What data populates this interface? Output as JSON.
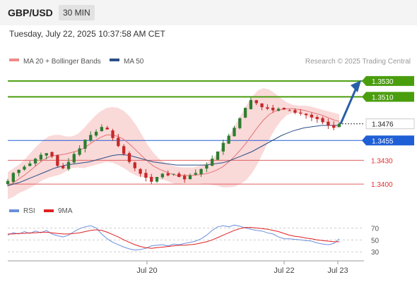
{
  "header": {
    "pair": "GBP/USD",
    "timeframe": "30 MIN"
  },
  "datetime": "Tuesday, July 22, 2025 10:37:58 AM CET",
  "legend": {
    "ma20": "MA 20 + Bollinger Bands",
    "ma50": "MA 50",
    "rsi": "RSI",
    "ma9": "9MA"
  },
  "credit": "Research © 2025 Trading Central",
  "colors": {
    "ma20": "#e57373",
    "bollinger": "#f8cccc",
    "ma50": "#2a4f86",
    "green_level": "#4a9e0e",
    "blue_level": "#1f5fd6",
    "red_level": "#e06060",
    "candle_up": "#2e7d32",
    "candle_down": "#c62828",
    "rsi": "#6a8fdc",
    "rsi_ma": "#e02020",
    "arrow": "#2a5ea8"
  },
  "chart_data": [
    {
      "type": "candlestick",
      "y_range": [
        1.3385,
        1.3545
      ],
      "x_labels": [
        "Jul 20",
        "Jul 22",
        "Jul 23"
      ],
      "current_price": 1.3476,
      "levels": [
        {
          "value": 1.353,
          "label": "1.3530",
          "kind": "resistance"
        },
        {
          "value": 1.351,
          "label": "1.3510",
          "kind": "resistance"
        },
        {
          "value": 1.3455,
          "label": "1.3455",
          "kind": "pivot"
        },
        {
          "value": 1.343,
          "label": "1.3430",
          "kind": "support"
        },
        {
          "value": 1.34,
          "label": "1.3400",
          "kind": "support"
        }
      ],
      "close_series": [
        1.3404,
        1.3414,
        1.3418,
        1.3422,
        1.3426,
        1.3432,
        1.3437,
        1.3439,
        1.3435,
        1.3423,
        1.342,
        1.3428,
        1.3438,
        1.3445,
        1.3456,
        1.3462,
        1.3466,
        1.3472,
        1.3469,
        1.3458,
        1.3448,
        1.3438,
        1.3428,
        1.342,
        1.3413,
        1.3408,
        1.3403,
        1.3409,
        1.3413,
        1.3411,
        1.3413,
        1.3409,
        1.3406,
        1.3411,
        1.3414,
        1.3419,
        1.3424,
        1.3432,
        1.3441,
        1.3452,
        1.3461,
        1.3471,
        1.3483,
        1.3496,
        1.3506,
        1.3502,
        1.3497,
        1.3495,
        1.3493,
        1.3495,
        1.3494,
        1.3493,
        1.349,
        1.3489,
        1.3487,
        1.3484,
        1.3482,
        1.3478,
        1.3474,
        1.3471,
        1.3476
      ],
      "ma20_series": [
        1.3398,
        1.3402,
        1.3407,
        1.3412,
        1.3418,
        1.3424,
        1.343,
        1.3434,
        1.3436,
        1.3437,
        1.3438,
        1.344,
        1.3442,
        1.3445,
        1.345,
        1.3455,
        1.3459,
        1.3462,
        1.3462,
        1.346,
        1.3456,
        1.345,
        1.3443,
        1.3436,
        1.3429,
        1.3423,
        1.3419,
        1.3416,
        1.3413,
        1.3411,
        1.3411,
        1.3411,
        1.3411,
        1.3412,
        1.3413,
        1.3415,
        1.3418,
        1.3422,
        1.3428,
        1.3435,
        1.3443,
        1.3452,
        1.3462,
        1.3472,
        1.3481,
        1.3488,
        1.3492,
        1.3494,
        1.3495,
        1.3495,
        1.3494,
        1.3493,
        1.3491,
        1.3489,
        1.3487,
        1.3484,
        1.3481,
        1.3479
      ],
      "bollinger_upper": [
        1.3415,
        1.342,
        1.3425,
        1.3432,
        1.344,
        1.3448,
        1.3455,
        1.346,
        1.3462,
        1.3462,
        1.346,
        1.346,
        1.3463,
        1.347,
        1.3478,
        1.3486,
        1.3492,
        1.3496,
        1.3497,
        1.3496,
        1.3492,
        1.3485,
        1.3475,
        1.3463,
        1.345,
        1.344,
        1.3432,
        1.3427,
        1.3424,
        1.3422,
        1.3421,
        1.3421,
        1.3421,
        1.3423,
        1.3426,
        1.3431,
        1.3438,
        1.3448,
        1.346,
        1.3473,
        1.3486,
        1.3499,
        1.351,
        1.3518,
        1.3521,
        1.3519,
        1.3514,
        1.3508,
        1.3503,
        1.35,
        1.3499,
        1.3499,
        1.3498,
        1.3496,
        1.3494,
        1.3492,
        1.349,
        1.3488
      ],
      "bollinger_lower": [
        1.3381,
        1.3384,
        1.3389,
        1.3392,
        1.3396,
        1.34,
        1.3405,
        1.3408,
        1.341,
        1.3412,
        1.3416,
        1.342,
        1.3421,
        1.342,
        1.3422,
        1.3424,
        1.3426,
        1.3428,
        1.3427,
        1.3424,
        1.342,
        1.3415,
        1.3411,
        1.3409,
        1.3408,
        1.3406,
        1.3406,
        1.3405,
        1.3402,
        1.34,
        1.3401,
        1.3401,
        1.3401,
        1.3401,
        1.34,
        1.3399,
        1.3398,
        1.3396,
        1.3396,
        1.3397,
        1.34,
        1.3405,
        1.3414,
        1.3426,
        1.3441,
        1.3457,
        1.347,
        1.348,
        1.3487,
        1.349,
        1.3489,
        1.3487,
        1.3484,
        1.3482,
        1.348,
        1.3476,
        1.3472,
        1.347
      ],
      "ma50_series": [
        1.3398,
        1.34,
        1.3402,
        1.3405,
        1.3408,
        1.3411,
        1.3414,
        1.3417,
        1.342,
        1.3422,
        1.3424,
        1.3425,
        1.3426,
        1.3427,
        1.3428,
        1.343,
        1.3432,
        1.3434,
        1.3436,
        1.3437,
        1.3437,
        1.3436,
        1.3434,
        1.3432,
        1.343,
        1.3428,
        1.3427,
        1.3426,
        1.3425,
        1.3424,
        1.3424,
        1.3424,
        1.3424,
        1.3424,
        1.3424,
        1.3425,
        1.3426,
        1.3427,
        1.3429,
        1.3432,
        1.3435,
        1.3438,
        1.3441,
        1.3445,
        1.3449,
        1.3453,
        1.3457,
        1.3461,
        1.3464,
        1.3467,
        1.3469,
        1.3471,
        1.3472,
        1.3473,
        1.3474,
        1.3474,
        1.3474,
        1.3474
      ]
    },
    {
      "type": "line",
      "title": "RSI",
      "y_ticks": [
        70,
        50,
        30
      ],
      "y_range": [
        22,
        80
      ],
      "rsi_series": [
        58,
        62,
        60,
        64,
        61,
        65,
        62,
        66,
        60,
        57,
        55,
        58,
        64,
        69,
        72,
        74,
        70,
        60,
        52,
        46,
        42,
        38,
        35,
        33,
        34,
        36,
        40,
        41,
        42,
        40,
        43,
        42,
        44,
        46,
        48,
        52,
        58,
        66,
        72,
        74,
        72,
        75,
        73,
        70,
        68,
        66,
        65,
        62,
        60,
        55,
        52,
        52,
        51,
        50,
        49,
        48,
        45,
        43,
        42,
        44,
        52
      ],
      "ma9_series": [
        60,
        60,
        61,
        61,
        62,
        62,
        63,
        63,
        62,
        61,
        60,
        60,
        61,
        62,
        64,
        66,
        67,
        66,
        63,
        59,
        55,
        50,
        46,
        42,
        39,
        37,
        36,
        37,
        38,
        39,
        40,
        41,
        41,
        42,
        43,
        45,
        47,
        50,
        54,
        58,
        62,
        66,
        69,
        71,
        71,
        70,
        69,
        68,
        66,
        64,
        61,
        58,
        56,
        55,
        53,
        52,
        50,
        49,
        48,
        47,
        47
      ]
    }
  ]
}
